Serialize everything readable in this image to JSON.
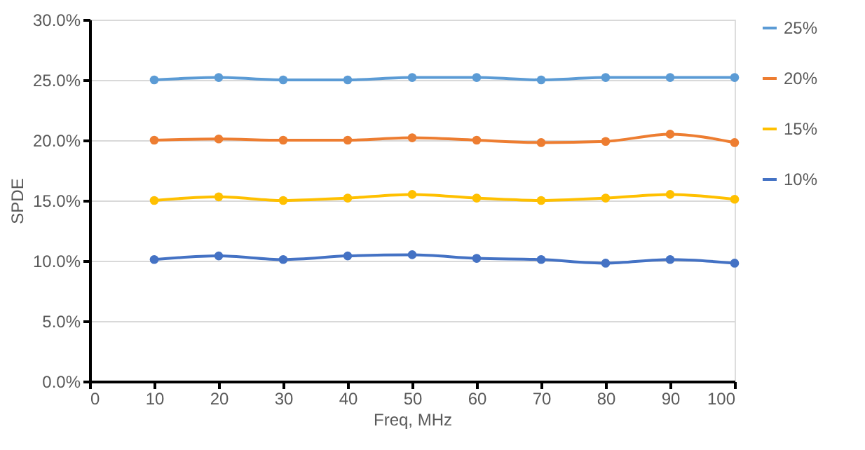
{
  "chart_data": {
    "type": "line",
    "xlabel": "Freq, MHz",
    "ylabel": "SPDE",
    "x": [
      10,
      20,
      30,
      40,
      50,
      60,
      70,
      80,
      90,
      100
    ],
    "series": [
      {
        "name": "25%",
        "color": "#5b9bd5",
        "values": [
          25.0,
          25.2,
          25.0,
          25.0,
          25.2,
          25.2,
          25.0,
          25.2,
          25.2,
          25.2
        ]
      },
      {
        "name": "20%",
        "color": "#ed7d31",
        "values": [
          20.0,
          20.1,
          20.0,
          20.0,
          20.2,
          20.0,
          19.8,
          19.9,
          20.5,
          19.8
        ]
      },
      {
        "name": "15%",
        "color": "#ffc000",
        "values": [
          15.0,
          15.3,
          15.0,
          15.2,
          15.5,
          15.2,
          15.0,
          15.2,
          15.5,
          15.1
        ]
      },
      {
        "name": "10%",
        "color": "#4472c4",
        "values": [
          10.1,
          10.4,
          10.1,
          10.4,
          10.5,
          10.2,
          10.1,
          9.8,
          10.1,
          9.8
        ]
      }
    ],
    "xlim": [
      0,
      100
    ],
    "xticks": [
      0,
      10,
      20,
      30,
      40,
      50,
      60,
      70,
      80,
      90,
      100
    ],
    "ylim": [
      0,
      30
    ],
    "yticks": [
      {
        "value": 0,
        "label": "0.0%"
      },
      {
        "value": 5,
        "label": "5.0%"
      },
      {
        "value": 10,
        "label": "10.0%"
      },
      {
        "value": 15,
        "label": "15.0%"
      },
      {
        "value": 20,
        "label": "20.0%"
      },
      {
        "value": 25,
        "label": "25.0%"
      },
      {
        "value": 30,
        "label": "30.0%"
      }
    ],
    "grid": "y",
    "legend": "right",
    "marker": "circle",
    "line_style": "solid"
  }
}
